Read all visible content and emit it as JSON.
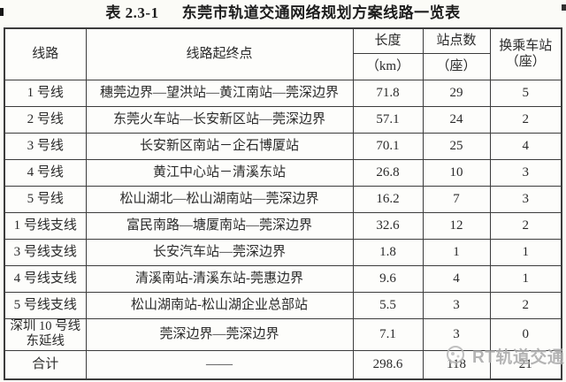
{
  "colors": {
    "background": "#fbfbf7",
    "border": "#3c3c3c",
    "text": "#2a2a2a",
    "title": "#1d1d1d",
    "watermark": "#ababab"
  },
  "title": {
    "label": "表 2.3-1",
    "text": "东莞市轨道交通网络规划方案线路一览表"
  },
  "table": {
    "headers": {
      "line": "线路",
      "route": "线路起终点",
      "length": "长度",
      "length_unit": "（km）",
      "stations": "站点数",
      "stations_unit": "（座）",
      "transfer_line1": "换乘车站",
      "transfer_line2": "（座）"
    },
    "rows": [
      {
        "line": "1 号线",
        "route": "穗莞边界—望洪站—黄江南站—莞深边界",
        "length": "71.8",
        "stations": "29",
        "transfers": "5"
      },
      {
        "line": "2 号线",
        "route": "东莞火车站—长安新区站—莞深边界",
        "length": "57.1",
        "stations": "24",
        "transfers": "2"
      },
      {
        "line": "3 号线",
        "route": "长安新区南站－企石博厦站",
        "length": "70.1",
        "stations": "25",
        "transfers": "4"
      },
      {
        "line": "4 号线",
        "route": "黄江中心站－清溪东站",
        "length": "26.8",
        "stations": "10",
        "transfers": "3"
      },
      {
        "line": "5 号线",
        "route": "松山湖北—松山湖南站—莞深边界",
        "length": "16.2",
        "stations": "7",
        "transfers": "3"
      },
      {
        "line": "1 号线支线",
        "route": "富民南路—塘厦南站—莞深边界",
        "length": "32.6",
        "stations": "12",
        "transfers": "2"
      },
      {
        "line": "3 号线支线",
        "route": "长安汽车站—莞深边界",
        "length": "1.8",
        "stations": "1",
        "transfers": "1"
      },
      {
        "line": "4 号线支线",
        "route": "清溪南站-清溪东站-莞惠边界",
        "length": "9.6",
        "stations": "4",
        "transfers": "1"
      },
      {
        "line": "5 号线支线",
        "route": "松山湖南站-松山湖企业总部站",
        "length": "5.5",
        "stations": "3",
        "transfers": "2"
      },
      {
        "line": "深圳 10 号线",
        "line2": "东延线",
        "route": "莞深边界—莞深边界",
        "length": "7.1",
        "stations": "3",
        "transfers": "0"
      },
      {
        "line": "合计",
        "route": "——",
        "length": "298.6",
        "stations": "118",
        "transfers": "21",
        "total": true
      }
    ]
  },
  "watermark": {
    "text": "RT轨道交通"
  }
}
